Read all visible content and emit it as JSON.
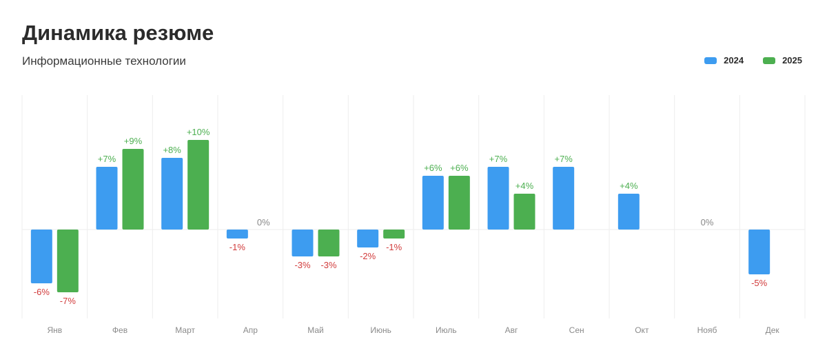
{
  "header": {
    "title": "Динамика резюме",
    "subtitle": "Информационные технологии"
  },
  "colors": {
    "series_2024": "#3d9cf0",
    "series_2025": "#4caf50",
    "label_positive": "#4caf50",
    "label_negative": "#d13b3b",
    "label_zero": "#888888",
    "grid": "#ededed"
  },
  "chart_data": {
    "type": "bar",
    "title": "Динамика резюме",
    "subtitle": "Информационные технологии",
    "xlabel": "",
    "ylabel": "",
    "categories": [
      "Янв",
      "Фев",
      "Март",
      "Апр",
      "Май",
      "Июнь",
      "Июль",
      "Авг",
      "Сен",
      "Окт",
      "Нояб",
      "Дек"
    ],
    "series": [
      {
        "name": "2024",
        "values": [
          -6,
          7,
          8,
          -1,
          -3,
          -2,
          6,
          7,
          7,
          4,
          null,
          -5
        ],
        "labels": [
          "-6%",
          "+7%",
          "+8%",
          "-1%",
          "-3%",
          "-2%",
          "+6%",
          "+7%",
          "+7%",
          "+4%",
          "0%",
          "-5%"
        ]
      },
      {
        "name": "2025",
        "values": [
          -7,
          9,
          10,
          null,
          -3,
          -1,
          6,
          4,
          null,
          null,
          null,
          null
        ],
        "labels": [
          "-7%",
          "+9%",
          "+10%",
          "0%",
          "-3%",
          "-1%",
          "+6%",
          "+4%",
          "",
          "",
          "",
          ""
        ]
      }
    ],
    "ylim": [
      -10,
      15
    ],
    "grid": true,
    "legend": "top-right"
  }
}
